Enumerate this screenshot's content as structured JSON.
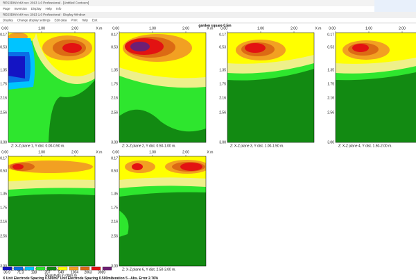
{
  "window": {
    "title": "RES3DINVx64 ver. 2013 1.0 Professional - [Untitled Contours]",
    "title2": "RES3DINVx64 ver. 2013 1.0 Professional - Display Window",
    "menu": [
      "Page",
      "Inversion",
      "Display",
      "Help",
      "Info"
    ],
    "menu2": [
      "Display",
      "Change display settings",
      "Edit data",
      "Print",
      "Help",
      "Exit"
    ]
  },
  "page_title": "garden square 0.5m",
  "x_axis": {
    "ticks": [
      "0.00",
      "1.00",
      "2.00"
    ],
    "unit": "X m"
  },
  "y_axis": {
    "ticks": [
      "0.17",
      "0.53",
      "1.35",
      "1.75",
      "2.16",
      "2.56",
      "3.00"
    ]
  },
  "panels": [
    {
      "caption": "Z: X-Z plane 1, Y dist. 0.00-0.50 m."
    },
    {
      "caption": "Z: X-Z plane 2, Y dist. 0.50-1.00 m."
    },
    {
      "caption": "Z: X-Z plane 3, Y dist. 1.00-1.50 m."
    },
    {
      "caption": "Z: X-Z plane 4, Y dist. 1.50-2.00 m."
    },
    {
      "caption": "Z: X-Z plane 5, Y dist. 2.00-2.50 m."
    },
    {
      "caption": "Z: X-Z plane 6, Y dist. 2.50-3.00 m."
    }
  ],
  "legend": {
    "labels": [
      "36.9",
      "71.3",
      "138",
      "267",
      "549",
      "1004",
      "2063",
      "3989"
    ],
    "title": "Resistivity in Ohm.m"
  },
  "status": [
    "X Unit Electrode Spacing 0.500m.",
    "Y Unit Electrode Spacing 0.500m.",
    "Iteration 5 - Abs. Error 2.76%"
  ]
}
